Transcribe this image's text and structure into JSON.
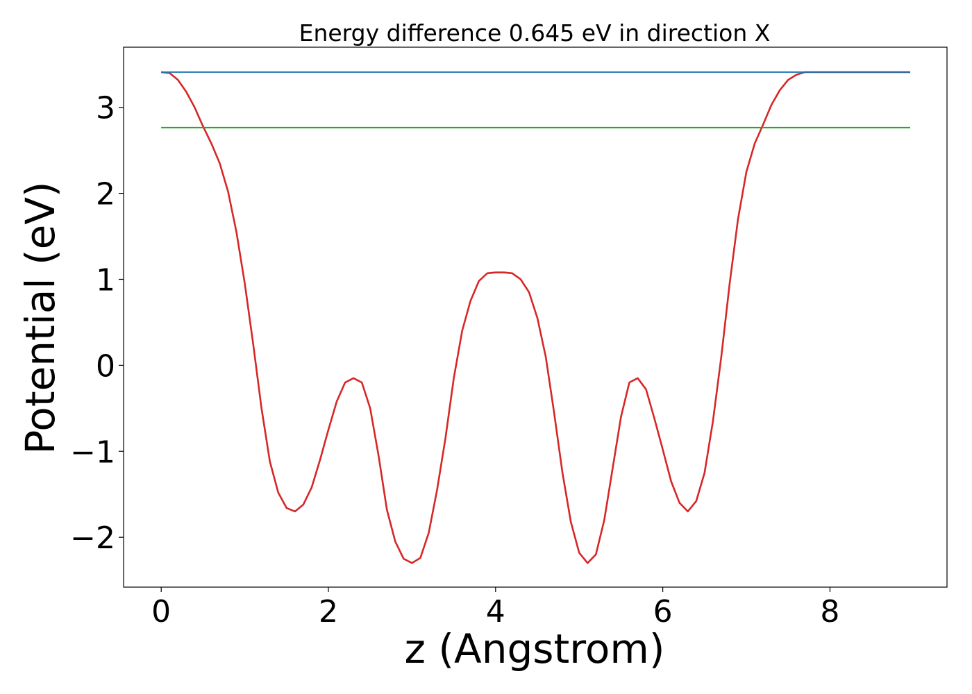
{
  "chart_data": {
    "type": "line",
    "title": "Energy difference 0.645 eV in direction X",
    "xlabel": "z (Angstrom)",
    "ylabel": "Potential (eV)",
    "xlim": [
      -0.45,
      9.4
    ],
    "ylim": [
      -2.58,
      3.7
    ],
    "xticks": [
      0,
      2,
      4,
      6,
      8
    ],
    "xtick_labels": [
      "0",
      "2",
      "4",
      "6",
      "8"
    ],
    "yticks": [
      -2,
      -1,
      0,
      1,
      2,
      3
    ],
    "ytick_labels": [
      "−2",
      "−1",
      "0",
      "1",
      "2",
      "3"
    ],
    "grid": false,
    "legend": "none",
    "series": [
      {
        "color": "#d62728",
        "x": [
          0.0,
          0.1,
          0.2,
          0.3,
          0.4,
          0.5,
          0.6,
          0.7,
          0.8,
          0.9,
          1.0,
          1.1,
          1.2,
          1.3,
          1.4,
          1.5,
          1.6,
          1.7,
          1.8,
          1.9,
          2.0,
          2.1,
          2.2,
          2.3,
          2.4,
          2.5,
          2.6,
          2.7,
          2.8,
          2.9,
          3.0,
          3.1,
          3.2,
          3.3,
          3.4,
          3.5,
          3.6,
          3.7,
          3.8,
          3.9,
          4.0,
          4.1,
          4.2,
          4.3,
          4.4,
          4.5,
          4.6,
          4.7,
          4.8,
          4.9,
          5.0,
          5.1,
          5.2,
          5.3,
          5.4,
          5.5,
          5.6,
          5.7,
          5.8,
          5.9,
          6.0,
          6.1,
          6.2,
          6.3,
          6.4,
          6.5,
          6.6,
          6.7,
          6.8,
          6.9,
          7.0,
          7.1,
          7.2,
          7.3,
          7.4,
          7.5,
          7.6,
          7.7,
          7.8,
          7.9,
          8.0,
          8.1,
          8.2,
          8.3,
          8.4,
          8.5,
          8.6,
          8.7,
          8.8,
          8.9,
          8.96
        ],
        "y": [
          3.41,
          3.4,
          3.32,
          3.18,
          3.0,
          2.78,
          2.58,
          2.35,
          2.02,
          1.55,
          0.95,
          0.25,
          -0.5,
          -1.12,
          -1.48,
          -1.66,
          -1.7,
          -1.62,
          -1.42,
          -1.1,
          -0.75,
          -0.42,
          -0.2,
          -0.15,
          -0.2,
          -0.5,
          -1.05,
          -1.68,
          -2.05,
          -2.25,
          -2.3,
          -2.24,
          -1.95,
          -1.45,
          -0.85,
          -0.15,
          0.4,
          0.75,
          0.98,
          1.07,
          1.08,
          1.08,
          1.07,
          1.0,
          0.85,
          0.55,
          0.1,
          -0.55,
          -1.25,
          -1.82,
          -2.18,
          -2.3,
          -2.2,
          -1.8,
          -1.2,
          -0.6,
          -0.2,
          -0.15,
          -0.28,
          -0.62,
          -0.98,
          -1.35,
          -1.6,
          -1.7,
          -1.58,
          -1.25,
          -0.65,
          0.1,
          0.95,
          1.7,
          2.25,
          2.58,
          2.8,
          3.03,
          3.2,
          3.32,
          3.38,
          3.41,
          3.41,
          3.41,
          3.41,
          3.41,
          3.41,
          3.41,
          3.41,
          3.41,
          3.41,
          3.41,
          3.41,
          3.41,
          3.41
        ]
      },
      {
        "color": "#1f77b4",
        "x": [
          0.0,
          8.96
        ],
        "y": [
          3.41,
          3.41
        ]
      },
      {
        "color": "#2ca02c",
        "x": [
          0.0,
          8.96
        ],
        "y": [
          2.765,
          2.765
        ]
      }
    ]
  }
}
